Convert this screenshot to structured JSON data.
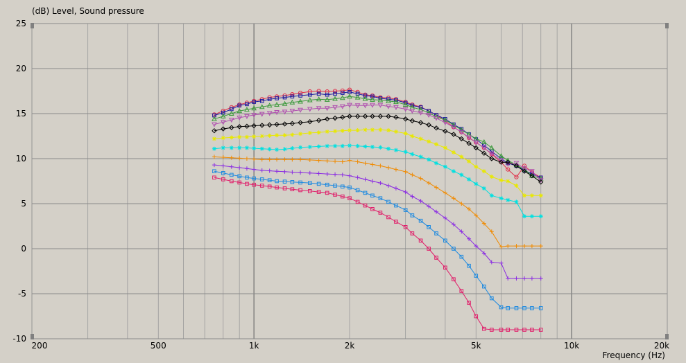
{
  "chart_data": {
    "type": "line",
    "ylabel": "(dB)  Level, Sound pressure",
    "xlabel": "Frequency  (Hz)",
    "x_scale": "log",
    "xlim": [
      200,
      20000
    ],
    "ylim": [
      -10,
      25
    ],
    "grid": true,
    "x_ticks": [
      {
        "value": 200,
        "label": "200"
      },
      {
        "value": 500,
        "label": "500"
      },
      {
        "value": 1000,
        "label": "1k"
      },
      {
        "value": 2000,
        "label": "2k"
      },
      {
        "value": 5000,
        "label": "5k"
      },
      {
        "value": 10000,
        "label": "10k"
      },
      {
        "value": 20000,
        "label": "20k"
      }
    ],
    "y_ticks": [
      25,
      20,
      15,
      10,
      5,
      0,
      -5,
      -10
    ],
    "x": [
      750,
      800,
      850,
      900,
      950,
      1000,
      1060,
      1120,
      1180,
      1250,
      1320,
      1400,
      1500,
      1600,
      1700,
      1800,
      1900,
      2000,
      2120,
      2240,
      2360,
      2500,
      2650,
      2800,
      3000,
      3150,
      3350,
      3550,
      3750,
      4000,
      4250,
      4500,
      4750,
      5000,
      5300,
      5600,
      6000,
      6300,
      6700,
      7100,
      7500,
      8000
    ],
    "series": [
      {
        "color": "#e0304a",
        "marker": "circle",
        "values": [
          14.9,
          15.3,
          15.7,
          16.0,
          16.2,
          16.4,
          16.6,
          16.8,
          16.9,
          17.0,
          17.15,
          17.3,
          17.45,
          17.5,
          17.45,
          17.5,
          17.55,
          17.65,
          17.4,
          17.1,
          17.0,
          16.8,
          16.75,
          16.6,
          16.3,
          16.0,
          15.75,
          15.3,
          14.85,
          14.2,
          13.5,
          12.95,
          12.3,
          11.8,
          11.2,
          10.5,
          9.6,
          8.8,
          7.95,
          9.2,
          8.5,
          7.9
        ]
      },
      {
        "color": "#1a1aa0",
        "marker": "square",
        "values": [
          14.8,
          15.1,
          15.5,
          15.9,
          16.05,
          16.3,
          16.4,
          16.6,
          16.7,
          16.8,
          16.9,
          17.0,
          17.1,
          17.2,
          17.1,
          17.2,
          17.3,
          17.4,
          17.2,
          17.0,
          16.9,
          16.7,
          16.6,
          16.5,
          16.2,
          15.9,
          15.7,
          15.3,
          14.85,
          14.4,
          13.8,
          13.3,
          12.7,
          12.15,
          11.5,
          10.8,
          10.0,
          9.5,
          9.2,
          8.7,
          8.3,
          7.9
        ]
      },
      {
        "color": "#3c9a3c",
        "marker": "triangle-up",
        "values": [
          14.4,
          14.7,
          15.0,
          15.3,
          15.45,
          15.6,
          15.75,
          15.9,
          16.0,
          16.1,
          16.25,
          16.35,
          16.5,
          16.6,
          16.55,
          16.65,
          16.75,
          16.9,
          16.8,
          16.65,
          16.55,
          16.5,
          16.4,
          16.3,
          16.0,
          15.7,
          15.45,
          15.1,
          14.65,
          14.3,
          13.75,
          13.2,
          12.7,
          12.2,
          11.85,
          11.2,
          10.3,
          9.8,
          9.3,
          8.8,
          8.1,
          7.8
        ]
      },
      {
        "color": "#b050b0",
        "marker": "triangle-down",
        "values": [
          13.8,
          14.05,
          14.3,
          14.55,
          14.7,
          14.85,
          14.95,
          15.05,
          15.15,
          15.2,
          15.3,
          15.4,
          15.5,
          15.6,
          15.6,
          15.7,
          15.8,
          15.95,
          15.9,
          15.9,
          15.95,
          15.95,
          15.8,
          15.7,
          15.5,
          15.3,
          15.1,
          14.85,
          14.5,
          14.0,
          13.5,
          12.95,
          12.35,
          11.8,
          11.2,
          10.55,
          9.8,
          9.4,
          9.5,
          8.9,
          8.6,
          7.6
        ]
      },
      {
        "color": "#000000",
        "marker": "diamond",
        "values": [
          13.1,
          13.3,
          13.45,
          13.55,
          13.6,
          13.65,
          13.7,
          13.75,
          13.8,
          13.85,
          13.9,
          14.0,
          14.1,
          14.25,
          14.4,
          14.5,
          14.6,
          14.7,
          14.7,
          14.7,
          14.7,
          14.7,
          14.7,
          14.6,
          14.4,
          14.2,
          14.0,
          13.75,
          13.4,
          13.05,
          12.7,
          12.2,
          11.7,
          11.2,
          10.6,
          10.0,
          9.6,
          9.6,
          9.2,
          8.6,
          8.1,
          7.4
        ]
      },
      {
        "color": "#e8e800",
        "marker": "star",
        "values": [
          12.2,
          12.3,
          12.35,
          12.4,
          12.4,
          12.45,
          12.5,
          12.55,
          12.6,
          12.6,
          12.65,
          12.75,
          12.85,
          12.9,
          13.0,
          13.05,
          13.1,
          13.15,
          13.15,
          13.2,
          13.2,
          13.2,
          13.15,
          13.0,
          12.8,
          12.5,
          12.2,
          11.9,
          11.6,
          11.2,
          10.7,
          10.2,
          9.7,
          9.1,
          8.6,
          8.0,
          7.6,
          7.5,
          7.0,
          5.9,
          5.9,
          5.9
        ]
      },
      {
        "color": "#00e0e0",
        "marker": "star",
        "values": [
          11.1,
          11.2,
          11.2,
          11.2,
          11.2,
          11.15,
          11.1,
          11.05,
          11.0,
          11.05,
          11.15,
          11.25,
          11.3,
          11.35,
          11.4,
          11.4,
          11.4,
          11.45,
          11.4,
          11.35,
          11.3,
          11.25,
          11.1,
          10.95,
          10.75,
          10.5,
          10.2,
          9.9,
          9.5,
          9.1,
          8.6,
          8.2,
          7.7,
          7.2,
          6.7,
          5.9,
          5.6,
          5.4,
          5.2,
          3.6,
          3.6,
          3.6
        ]
      },
      {
        "color": "#f08a00",
        "marker": "plus",
        "values": [
          10.2,
          10.15,
          10.1,
          10.05,
          10.0,
          9.95,
          9.9,
          9.9,
          9.9,
          9.9,
          9.9,
          9.9,
          9.85,
          9.8,
          9.75,
          9.7,
          9.65,
          9.8,
          9.65,
          9.5,
          9.35,
          9.2,
          9.0,
          8.8,
          8.55,
          8.2,
          7.8,
          7.3,
          6.8,
          6.2,
          5.6,
          5.0,
          4.4,
          3.7,
          2.8,
          1.9,
          0.2,
          0.3,
          0.3,
          0.3,
          0.3,
          0.3
        ]
      },
      {
        "color": "#8a2be2",
        "marker": "plus",
        "values": [
          9.3,
          9.2,
          9.1,
          9.0,
          8.9,
          8.8,
          8.7,
          8.65,
          8.6,
          8.55,
          8.5,
          8.45,
          8.4,
          8.35,
          8.3,
          8.25,
          8.2,
          8.1,
          7.9,
          7.7,
          7.5,
          7.3,
          7.0,
          6.7,
          6.3,
          5.8,
          5.3,
          4.7,
          4.1,
          3.4,
          2.7,
          1.9,
          1.1,
          0.3,
          -0.5,
          -1.5,
          -1.6,
          -3.3,
          -3.3,
          -3.3,
          -3.3,
          -3.3
        ]
      },
      {
        "color": "#1e8ae0",
        "marker": "square",
        "values": [
          8.6,
          8.4,
          8.2,
          8.05,
          7.9,
          7.8,
          7.7,
          7.6,
          7.5,
          7.45,
          7.4,
          7.35,
          7.3,
          7.2,
          7.1,
          7.0,
          6.9,
          6.8,
          6.5,
          6.2,
          5.9,
          5.6,
          5.2,
          4.8,
          4.3,
          3.7,
          3.1,
          2.4,
          1.7,
          0.9,
          0.0,
          -0.9,
          -1.9,
          -3.0,
          -4.2,
          -5.5,
          -6.5,
          -6.6,
          -6.6,
          -6.6,
          -6.6,
          -6.6
        ]
      },
      {
        "color": "#e01e6a",
        "marker": "square",
        "values": [
          7.9,
          7.7,
          7.5,
          7.35,
          7.2,
          7.1,
          7.0,
          6.9,
          6.8,
          6.7,
          6.6,
          6.5,
          6.4,
          6.3,
          6.2,
          6.0,
          5.8,
          5.6,
          5.2,
          4.8,
          4.4,
          4.0,
          3.5,
          3.0,
          2.4,
          1.7,
          0.9,
          0.0,
          -1.0,
          -2.1,
          -3.4,
          -4.7,
          -6.0,
          -7.5,
          -8.9,
          -9.0,
          -9.0,
          -9.0,
          -9.0,
          -9.0,
          -9.0,
          -9.0
        ]
      }
    ]
  }
}
